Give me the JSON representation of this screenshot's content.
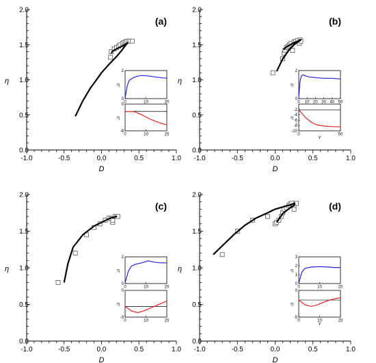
{
  "chart_data": [
    {
      "type": "scatter",
      "panel_label": "(a)",
      "xlabel": "D",
      "ylabel": "η",
      "xlim": [
        -1.0,
        1.0
      ],
      "ylim": [
        0.0,
        2.0
      ],
      "x_ticks": [
        "-1.0",
        "-0.5",
        "0.0",
        "0.5",
        "1.0"
      ],
      "y_ticks": [
        "0.0",
        "0.5",
        "1.0",
        "1.5",
        "2.0"
      ],
      "series": [
        {
          "marker": "square",
          "points": [
            [
              0.12,
              1.32
            ],
            [
              0.13,
              1.4
            ],
            [
              0.17,
              1.44
            ],
            [
              0.2,
              1.46
            ],
            [
              0.23,
              1.48
            ],
            [
              0.25,
              1.5
            ],
            [
              0.28,
              1.52
            ],
            [
              0.3,
              1.53
            ],
            [
              0.32,
              1.54
            ],
            [
              0.34,
              1.55
            ],
            [
              0.36,
              1.55
            ],
            [
              0.38,
              1.55
            ],
            [
              0.41,
              1.55
            ]
          ]
        },
        {
          "style": "line",
          "color": "#000000",
          "points": [
            [
              -0.35,
              0.48
            ],
            [
              -0.25,
              0.7
            ],
            [
              -0.15,
              0.88
            ],
            [
              -0.08,
              0.98
            ],
            [
              0.0,
              1.1
            ],
            [
              0.1,
              1.22
            ],
            [
              0.2,
              1.33
            ],
            [
              0.27,
              1.42
            ],
            [
              0.32,
              1.49
            ],
            [
              0.35,
              1.53
            ],
            [
              0.33,
              1.51
            ],
            [
              0.28,
              1.48
            ],
            [
              0.2,
              1.44
            ],
            [
              0.15,
              1.41
            ],
            [
              0.13,
              1.38
            ]
          ]
        }
      ],
      "insets": [
        {
          "ylabel": "η",
          "xlabel": "",
          "xlim": [
            0,
            20
          ],
          "ylim": [
            0,
            2
          ],
          "x_ticks": [
            "0",
            "10",
            "20"
          ],
          "y_ticks": [
            "0",
            "2"
          ],
          "color": "#2222dd",
          "points": [
            [
              0,
              0.05
            ],
            [
              1,
              0.9
            ],
            [
              2,
              1.3
            ],
            [
              4,
              1.5
            ],
            [
              6,
              1.6
            ],
            [
              8,
              1.65
            ],
            [
              11,
              1.62
            ],
            [
              14,
              1.55
            ],
            [
              17,
              1.5
            ],
            [
              20,
              1.45
            ]
          ]
        },
        {
          "ylabel": "η",
          "xlabel": "",
          "xlim": [
            0,
            20
          ],
          "ylim": [
            -8,
            0
          ],
          "x_ticks": [
            "0",
            "10",
            "20"
          ],
          "y_ticks": [
            "-8",
            "0"
          ],
          "color": "#dd2222",
          "baseline": -2.2,
          "points": [
            [
              0,
              -2.3
            ],
            [
              3,
              -2.2
            ],
            [
              5,
              -2.4
            ],
            [
              8,
              -3.2
            ],
            [
              11,
              -4.2
            ],
            [
              14,
              -5.0
            ],
            [
              17,
              -5.7
            ],
            [
              20,
              -6.2
            ]
          ]
        }
      ]
    },
    {
      "type": "scatter",
      "panel_label": "(b)",
      "xlabel": "D",
      "ylabel": "η",
      "xlim": [
        -1.0,
        1.0
      ],
      "ylim": [
        0.0,
        2.0
      ],
      "x_ticks": [
        "-1.0",
        "-0.5",
        "0.0",
        "0.5",
        "1.0"
      ],
      "y_ticks": [
        "0.0",
        "0.5",
        "1.0",
        "1.5",
        "2.0"
      ],
      "series": [
        {
          "marker": "square",
          "points": [
            [
              -0.03,
              1.1
            ],
            [
              0.1,
              1.3
            ],
            [
              0.12,
              1.38
            ],
            [
              0.13,
              1.42
            ],
            [
              0.15,
              1.46
            ],
            [
              0.17,
              1.48
            ],
            [
              0.19,
              1.5
            ],
            [
              0.21,
              1.52
            ],
            [
              0.23,
              1.42
            ],
            [
              0.25,
              1.54
            ],
            [
              0.27,
              1.55
            ],
            [
              0.3,
              1.56
            ],
            [
              0.32,
              1.52
            ],
            [
              0.33,
              1.57
            ],
            [
              0.34,
              1.55
            ]
          ]
        },
        {
          "style": "line",
          "color": "#000000",
          "points": [
            [
              0.02,
              1.12
            ],
            [
              0.1,
              1.3
            ],
            [
              0.18,
              1.42
            ],
            [
              0.25,
              1.5
            ],
            [
              0.3,
              1.54
            ],
            [
              0.33,
              1.56
            ],
            [
              0.34,
              1.57
            ],
            [
              0.3,
              1.55
            ],
            [
              0.25,
              1.53
            ],
            [
              0.2,
              1.5
            ],
            [
              0.15,
              1.47
            ],
            [
              0.11,
              1.43
            ]
          ]
        }
      ],
      "insets": [
        {
          "ylabel": "η",
          "xlabel": "",
          "xlim": [
            0,
            50
          ],
          "ylim": [
            0,
            2
          ],
          "x_ticks": [
            "0",
            "10",
            "20",
            "30",
            "40",
            "50"
          ],
          "y_ticks": [
            "0",
            "2"
          ],
          "color": "#2222dd",
          "points": [
            [
              0,
              0.05
            ],
            [
              1.5,
              1.2
            ],
            [
              3,
              1.6
            ],
            [
              5,
              1.7
            ],
            [
              8,
              1.62
            ],
            [
              12,
              1.55
            ],
            [
              20,
              1.5
            ],
            [
              30,
              1.45
            ],
            [
              40,
              1.45
            ],
            [
              50,
              1.4
            ]
          ]
        },
        {
          "ylabel": "η",
          "xlabel": "Y",
          "xlim": [
            0,
            50
          ],
          "ylim": [
            -10,
            0
          ],
          "x_ticks": [
            "0",
            "50"
          ],
          "y_ticks": [
            "-10",
            "-8",
            "-6",
            "-4",
            "-2"
          ],
          "color": "#dd2222",
          "baseline": -2.2,
          "points": [
            [
              0,
              -2.2
            ],
            [
              3,
              -3.2
            ],
            [
              8,
              -5.0
            ],
            [
              15,
              -6.8
            ],
            [
              22,
              -7.8
            ],
            [
              30,
              -8.2
            ],
            [
              40,
              -8.4
            ],
            [
              50,
              -8.5
            ]
          ]
        }
      ]
    },
    {
      "type": "scatter",
      "panel_label": "(c)",
      "xlabel": "D",
      "ylabel": "η",
      "xlim": [
        -1.0,
        1.0
      ],
      "ylim": [
        0.0,
        2.0
      ],
      "x_ticks": [
        "-1.0",
        "-0.5",
        "0.0",
        "0.5",
        "1.0"
      ],
      "y_ticks": [
        "0.0",
        "0.5",
        "1.0",
        "1.5",
        "2.0"
      ],
      "series": [
        {
          "marker": "square",
          "points": [
            [
              -0.58,
              0.8
            ],
            [
              -0.35,
              1.2
            ],
            [
              -0.2,
              1.45
            ],
            [
              -0.1,
              1.55
            ],
            [
              -0.02,
              1.6
            ],
            [
              0.05,
              1.65
            ],
            [
              0.1,
              1.68
            ],
            [
              0.13,
              1.67
            ],
            [
              0.15,
              1.62
            ],
            [
              0.15,
              1.65
            ],
            [
              0.18,
              1.7
            ],
            [
              0.2,
              1.7
            ],
            [
              0.22,
              1.7
            ]
          ]
        },
        {
          "style": "line",
          "color": "#000000",
          "points": [
            [
              -0.5,
              0.8
            ],
            [
              -0.45,
              1.05
            ],
            [
              -0.38,
              1.28
            ],
            [
              -0.25,
              1.45
            ],
            [
              -0.1,
              1.57
            ],
            [
              0.0,
              1.62
            ],
            [
              0.1,
              1.67
            ],
            [
              0.16,
              1.69
            ],
            [
              0.2,
              1.7
            ],
            [
              0.17,
              1.69
            ],
            [
              0.14,
              1.68
            ]
          ]
        }
      ],
      "insets": [
        {
          "ylabel": "η",
          "xlabel": "",
          "xlim": [
            0,
            20
          ],
          "ylim": [
            0,
            2
          ],
          "x_ticks": [
            "0",
            "10",
            "20"
          ],
          "y_ticks": [
            "0",
            "2"
          ],
          "color": "#2222dd",
          "points": [
            [
              0,
              0.05
            ],
            [
              1.5,
              0.9
            ],
            [
              3,
              1.3
            ],
            [
              5,
              1.45
            ],
            [
              8,
              1.55
            ],
            [
              11,
              1.7
            ],
            [
              14,
              1.6
            ],
            [
              17,
              1.55
            ],
            [
              20,
              1.55
            ]
          ]
        },
        {
          "ylabel": "η",
          "xlabel": "",
          "xlim": [
            0,
            20
          ],
          "ylim": [
            -3,
            0
          ],
          "x_ticks": [
            "0",
            "10",
            "20"
          ],
          "y_ticks": [
            "-3",
            "0"
          ],
          "color": "#dd2222",
          "baseline": -1.8,
          "points": [
            [
              0,
              -1.8
            ],
            [
              3,
              -2.3
            ],
            [
              6,
              -2.5
            ],
            [
              9,
              -2.3
            ],
            [
              12,
              -2.0
            ],
            [
              15,
              -1.7
            ],
            [
              18,
              -1.4
            ],
            [
              20,
              -1.2
            ]
          ]
        }
      ]
    },
    {
      "type": "scatter",
      "panel_label": "(d)",
      "xlabel": "D",
      "ylabel": "η",
      "xlim": [
        -1.0,
        1.0
      ],
      "ylim": [
        0.0,
        2.0
      ],
      "x_ticks": [
        "-1.0",
        "-0.5",
        "0.0",
        "0.5",
        "1.0"
      ],
      "y_ticks": [
        "0.0",
        "0.5",
        "1.0",
        "1.5",
        "2.0"
      ],
      "series": [
        {
          "marker": "square",
          "points": [
            [
              -0.7,
              1.18
            ],
            [
              -0.5,
              1.5
            ],
            [
              -0.3,
              1.65
            ],
            [
              -0.1,
              1.7
            ],
            [
              0.0,
              1.6
            ],
            [
              0.02,
              1.62
            ],
            [
              0.05,
              1.65
            ],
            [
              0.08,
              1.7
            ],
            [
              0.1,
              1.75
            ],
            [
              0.12,
              1.8
            ],
            [
              0.15,
              1.82
            ],
            [
              0.18,
              1.85
            ],
            [
              0.2,
              1.87
            ],
            [
              0.22,
              1.88
            ],
            [
              0.25,
              1.8
            ],
            [
              0.25,
              1.85
            ],
            [
              0.28,
              1.88
            ]
          ]
        },
        {
          "style": "line",
          "color": "#000000",
          "points": [
            [
              -0.82,
              1.18
            ],
            [
              -0.7,
              1.3
            ],
            [
              -0.55,
              1.45
            ],
            [
              -0.4,
              1.58
            ],
            [
              -0.25,
              1.68
            ],
            [
              -0.1,
              1.75
            ],
            [
              0.0,
              1.8
            ],
            [
              0.1,
              1.83
            ],
            [
              0.2,
              1.86
            ],
            [
              0.26,
              1.88
            ],
            [
              0.25,
              1.85
            ],
            [
              0.2,
              1.82
            ],
            [
              0.1,
              1.74
            ],
            [
              0.02,
              1.62
            ]
          ]
        }
      ],
      "insets": [
        {
          "ylabel": "η",
          "xlabel": "",
          "xlim": [
            0,
            20
          ],
          "ylim": [
            0,
            3
          ],
          "x_ticks": [
            "0",
            "10",
            "20"
          ],
          "y_ticks": [
            "0",
            "1",
            "2",
            "3"
          ],
          "color": "#2222dd",
          "points": [
            [
              0,
              0.05
            ],
            [
              1.5,
              1.3
            ],
            [
              3,
              1.7
            ],
            [
              6,
              1.85
            ],
            [
              10,
              1.9
            ],
            [
              14,
              1.85
            ],
            [
              17,
              1.8
            ],
            [
              20,
              1.8
            ]
          ]
        },
        {
          "ylabel": "η",
          "xlabel": "Y",
          "xlim": [
            0,
            20
          ],
          "ylim": [
            -5,
            0
          ],
          "x_ticks": [
            "0",
            "10",
            "20"
          ],
          "y_ticks": [
            "-5",
            "0"
          ],
          "color": "#dd2222",
          "baseline": -1.8,
          "points": [
            [
              0,
              -1.8
            ],
            [
              3,
              -2.7
            ],
            [
              6,
              -3.0
            ],
            [
              9,
              -2.7
            ],
            [
              12,
              -2.2
            ],
            [
              15,
              -1.8
            ],
            [
              18,
              -1.5
            ],
            [
              20,
              -1.4
            ]
          ]
        }
      ]
    }
  ]
}
